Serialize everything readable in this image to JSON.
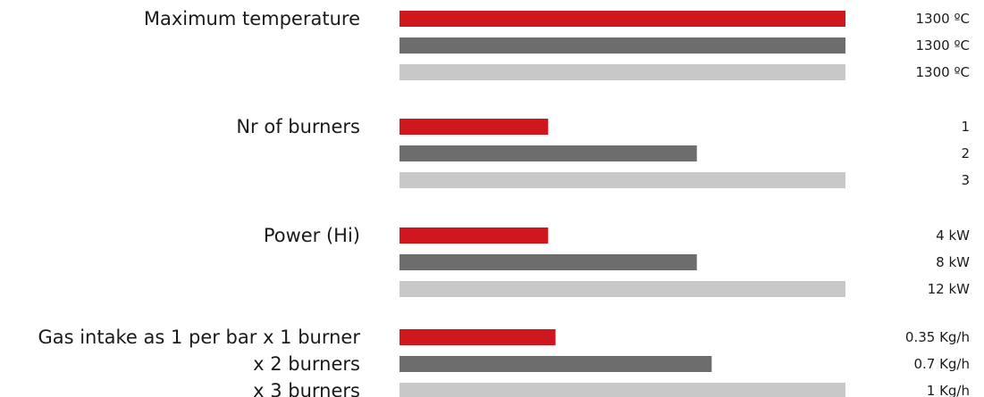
{
  "chart_data": {
    "type": "bar",
    "orientation": "horizontal",
    "colors": [
      "#d0171d",
      "#6d6d6d",
      "#c8c8c8"
    ],
    "groups": [
      {
        "label": "Maximum temperature",
        "bars": [
          {
            "value": 1300,
            "value_label": "1300 ºC"
          },
          {
            "value": 1300,
            "value_label": "1300 ºC"
          },
          {
            "value": 1300,
            "value_label": "1300 ºC"
          }
        ]
      },
      {
        "label": "Nr of burners",
        "bars": [
          {
            "value": 1,
            "value_label": "1"
          },
          {
            "value": 2,
            "value_label": "2"
          },
          {
            "value": 3,
            "value_label": "3"
          }
        ]
      },
      {
        "label": "Power (Hi)",
        "bars": [
          {
            "value": 4,
            "value_label": "4 kW"
          },
          {
            "value": 8,
            "value_label": "8 kW"
          },
          {
            "value": 12,
            "value_label": "12 kW"
          }
        ]
      },
      {
        "label": "Gas intake  as 1 per bar",
        "bar_labels": [
          "x 1 burner",
          "x 2 burners",
          "x 3 burners"
        ],
        "bars": [
          {
            "value": 0.35,
            "value_label": "0.35 Kg/h"
          },
          {
            "value": 0.7,
            "value_label": "0.7 Kg/h"
          },
          {
            "value": 1,
            "value_label": "1 Kg/h"
          }
        ]
      }
    ]
  }
}
